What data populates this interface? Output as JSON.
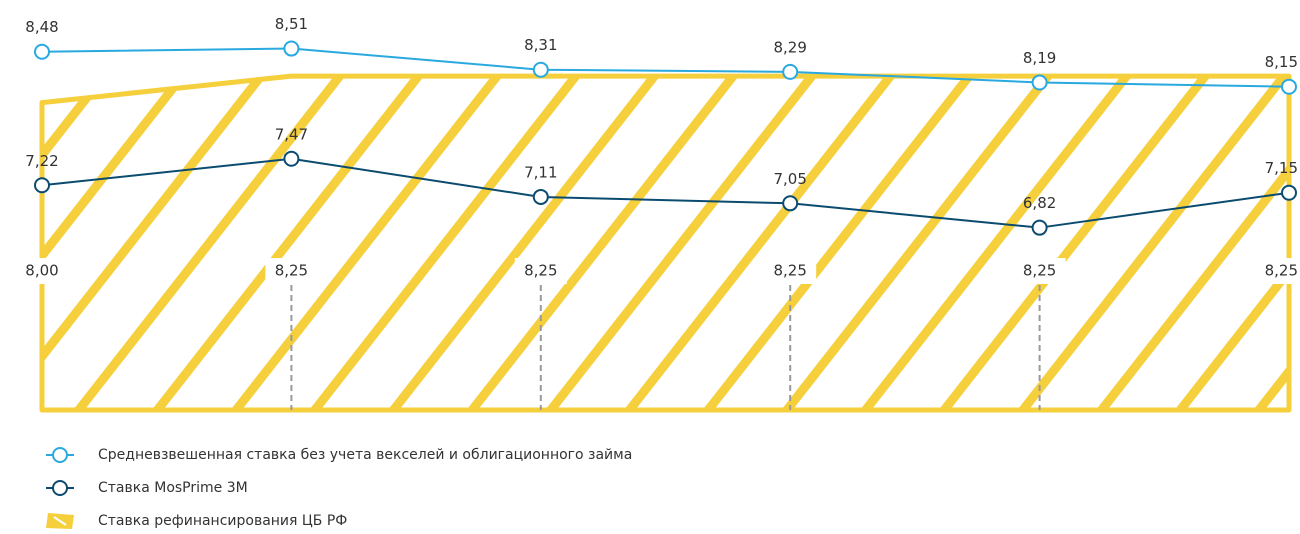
{
  "chart_data": {
    "type": "line",
    "ylim": [
      5.1,
      8.6
    ],
    "series": [
      {
        "name": "Средневзвешенная ставка без учета векселей и облигационного займа",
        "color": "#29a9e0",
        "values": [
          8.48,
          8.51,
          8.31,
          8.29,
          8.19,
          8.15
        ],
        "value_labels": [
          "8,48",
          "8,51",
          "8,31",
          "8,29",
          "8,19",
          "8,15"
        ]
      },
      {
        "name": "Ставка MosPrime 3M",
        "color": "#0b4b70",
        "values": [
          7.22,
          7.47,
          7.11,
          7.05,
          6.82,
          7.15
        ],
        "value_labels": [
          "7,22",
          "7,47",
          "7,11",
          "7,05",
          "6,82",
          "7,15"
        ]
      },
      {
        "name": "Ставка рефинансирования ЦБ РФ",
        "color": "#f5cf3c",
        "type": "area",
        "values": [
          8.0,
          8.25,
          8.25,
          8.25,
          8.25,
          8.25
        ],
        "value_labels": [
          "8,00",
          "8,25",
          "8,25",
          "8,25",
          "8,25",
          "8,25"
        ]
      }
    ]
  }
}
